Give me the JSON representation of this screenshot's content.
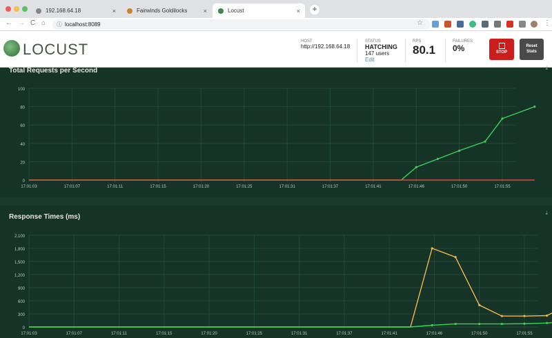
{
  "browser": {
    "tabs": [
      {
        "title": "192.168.64.18",
        "active": false,
        "favicon_color": "#888888"
      },
      {
        "title": "Fairwinds Goldilocks",
        "active": false,
        "favicon_color": "#c8842e"
      },
      {
        "title": "Locust",
        "active": true,
        "favicon_color": "#3a8a4a"
      }
    ],
    "new_tab": "+",
    "url": "localhost:8089",
    "close_glyph": "×",
    "nav": {
      "back": "←",
      "forward": "→",
      "reload": "C",
      "home": "⌂",
      "lock": "ⓘ",
      "star": "☆",
      "menu": "⋮"
    }
  },
  "header": {
    "logo_text": "LOCUST",
    "host_label": "HOST",
    "host_value": "http://192.168.64.18",
    "status_label": "STATUS",
    "status_value": "HATCHING",
    "users_text": "147 users",
    "edit_link": "Edit",
    "rps_label": "RPS",
    "rps_value": "80.1",
    "failures_label": "FAILURES",
    "failures_value": "0%",
    "stop_label": "STOP",
    "reset_label_1": "Reset",
    "reset_label_2": "Stats"
  },
  "colors": {
    "chart_bg": "#153326",
    "grid": "#234a37",
    "rps_line": "#39d353",
    "fail_line": "#d94a3a",
    "p95_line": "#f2b84b",
    "median_line": "#39d353"
  },
  "chart_data": [
    {
      "type": "line",
      "title": "Total Requests per Second",
      "x": [
        "17:01:03",
        "17:01:07",
        "17:01:11",
        "17:01:15",
        "17:01:20",
        "17:01:25",
        "17:01:31",
        "17:01:37",
        "17:01:41",
        "17:01:46",
        "17:01:50",
        "17:01:55"
      ],
      "ylim": [
        0,
        100
      ],
      "yticks": [
        0,
        20,
        40,
        60,
        80,
        100
      ],
      "series": [
        {
          "color": "#39d353",
          "values": [
            0,
            0,
            0,
            0,
            0,
            0,
            0,
            0,
            0,
            14,
            32,
            67
          ],
          "extra": [
            [
              8.65,
              0
            ],
            [
              9.5,
              23
            ],
            [
              10.6,
              42
            ],
            [
              11.75,
              80
            ]
          ]
        },
        {
          "color": "#d94a3a",
          "values": [
            0,
            0,
            0,
            0,
            0,
            0,
            0,
            0,
            0,
            0,
            0,
            0
          ],
          "extra": [
            [
              11.75,
              0
            ]
          ]
        }
      ]
    },
    {
      "type": "line",
      "title": "Response Times (ms)",
      "x": [
        "17:01:03",
        "17:01:07",
        "17:01:11",
        "17:01:15",
        "17:01:20",
        "17:01:25",
        "17:01:31",
        "17:01:37",
        "17:01:41",
        "17:01:46",
        "17:01:50",
        "17:01:55"
      ],
      "ylim": [
        0,
        2100
      ],
      "yticks": [
        0,
        300,
        600,
        900,
        1200,
        1500,
        1800,
        2100
      ],
      "series": [
        {
          "color": "#f2b84b",
          "points": [
            [
              0,
              0
            ],
            [
              8,
              0
            ],
            [
              8.47,
              0
            ],
            [
              8.95,
              1800
            ],
            [
              9.47,
              1600
            ],
            [
              10.0,
              500
            ],
            [
              10.5,
              250
            ],
            [
              11.0,
              250
            ],
            [
              11.5,
              260
            ],
            [
              12.0,
              520
            ]
          ]
        },
        {
          "color": "#39d353",
          "points": [
            [
              0,
              0
            ],
            [
              8,
              0
            ],
            [
              8.47,
              0
            ],
            [
              8.95,
              40
            ],
            [
              9.47,
              70
            ],
            [
              10.0,
              70
            ],
            [
              10.5,
              70
            ],
            [
              11.0,
              75
            ],
            [
              11.5,
              90
            ],
            [
              12.0,
              130
            ]
          ]
        }
      ]
    }
  ]
}
